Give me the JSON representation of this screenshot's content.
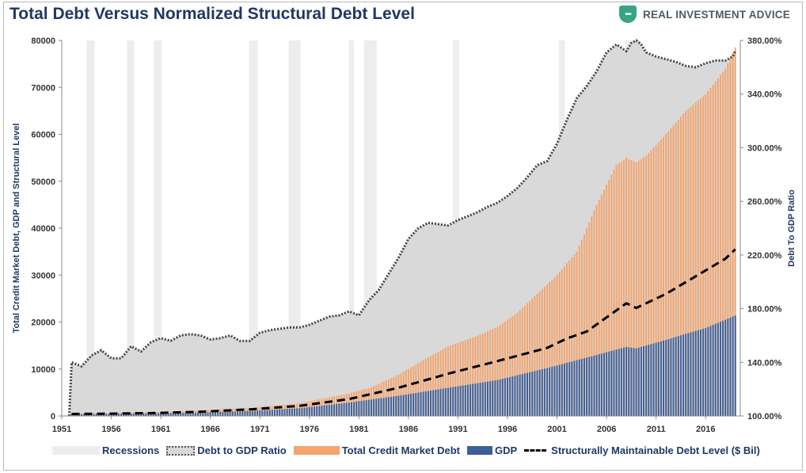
{
  "title": "Total Debt Versus Normalized Structural Debt Level",
  "brand": {
    "badge": "•••",
    "name": "REAL INVESTMENT ADVICE"
  },
  "colors": {
    "ratio_fill": "#d9d9d9",
    "recession": "#ededed",
    "debt": "#f4a46c",
    "gdp": "#3c5f99",
    "structural": "#000000",
    "title": "#1f3864"
  },
  "legend": [
    {
      "key": "recessions",
      "label": "Recessions"
    },
    {
      "key": "ratio",
      "label": "Debt to GDP Ratio"
    },
    {
      "key": "debt",
      "label": "Total Credit Market Debt"
    },
    {
      "key": "gdp",
      "label": "GDP"
    },
    {
      "key": "structural",
      "label": "Structurally Maintainable Debt Level ($ Bil)"
    }
  ],
  "chart_data": {
    "type": "area",
    "title": "Total Debt Versus Normalized Structural Debt Level",
    "xlabel": "",
    "ylabel": "Total Credit Market Debt, GDP and Structural Level",
    "y2label": "Debt To GDP Ratio",
    "xlim": [
      1951,
      2019.5
    ],
    "ylim": [
      0,
      80000
    ],
    "y2lim": [
      100,
      380
    ],
    "x_ticks": [
      "1951",
      "1956",
      "1961",
      "1966",
      "1971",
      "1976",
      "1981",
      "1986",
      "1991",
      "1996",
      "2001",
      "2006",
      "2011",
      "2016"
    ],
    "y_ticks": [
      "0",
      "10000",
      "20000",
      "30000",
      "40000",
      "50000",
      "60000",
      "70000",
      "80000"
    ],
    "y2_ticks": [
      "100.00%",
      "140.00%",
      "180.00%",
      "220.00%",
      "260.00%",
      "300.00%",
      "340.00%",
      "380.00%"
    ],
    "recessions": [
      [
        1953.5,
        1954.3
      ],
      [
        1957.6,
        1958.3
      ],
      [
        1960.3,
        1961.1
      ],
      [
        1969.9,
        1970.8
      ],
      [
        1973.9,
        1975.1
      ],
      [
        1980.0,
        1980.5
      ],
      [
        1981.5,
        1982.8
      ],
      [
        1990.5,
        1991.1
      ],
      [
        2001.2,
        2001.8
      ],
      [
        2007.9,
        2009.5
      ]
    ],
    "series": [
      {
        "name": "Debt to GDP Ratio",
        "axis": "right",
        "x": [
          1951.75,
          1952,
          1953,
          1954,
          1955,
          1956,
          1957,
          1958,
          1959,
          1960,
          1961,
          1962,
          1963,
          1964,
          1965,
          1966,
          1967,
          1968,
          1969,
          1970,
          1971,
          1972,
          1973,
          1974,
          1975,
          1976,
          1977,
          1978,
          1979,
          1980,
          1981,
          1982,
          1983,
          1984,
          1985,
          1986,
          1987,
          1988,
          1989,
          1990,
          1991,
          1992,
          1993,
          1994,
          1995,
          1996,
          1997,
          1998,
          1999,
          2000,
          2001,
          2002,
          2003,
          2004,
          2005,
          2006,
          2007,
          2008,
          2008.5,
          2009,
          2009.5,
          2010,
          2011,
          2012,
          2013,
          2014,
          2015,
          2016,
          2017,
          2018,
          2018.75,
          2019
        ],
        "values": [
          100,
          140,
          137,
          145,
          149,
          143,
          143,
          152,
          148,
          155,
          158,
          156,
          160,
          161,
          160,
          157,
          158,
          160,
          156,
          156,
          162,
          164,
          165,
          166,
          166,
          168,
          171,
          174,
          175,
          178,
          175,
          186,
          194,
          206,
          218,
          232,
          240,
          244,
          243,
          242,
          246,
          249,
          252,
          256,
          259,
          264,
          270,
          278,
          287,
          290,
          303,
          321,
          337,
          346,
          357,
          371,
          377,
          372,
          378,
          380,
          377,
          371,
          368,
          366,
          364,
          361,
          360,
          363,
          365,
          365,
          368,
          372
        ]
      },
      {
        "name": "Total Credit Market Debt",
        "axis": "left",
        "x": [
          1952,
          1955,
          1960,
          1965,
          1970,
          1975,
          1980,
          1982,
          1985,
          1988,
          1990,
          1993,
          1995,
          1997,
          1999,
          2001,
          2003,
          2005,
          2007,
          2008,
          2009,
          2010,
          2012,
          2014,
          2016,
          2018,
          2019
        ],
        "values": [
          500,
          560,
          800,
          1200,
          1700,
          2700,
          4800,
          5900,
          8800,
          12500,
          14800,
          17100,
          19000,
          22000,
          26000,
          30000,
          35000,
          45000,
          53500,
          55000,
          54000,
          55500,
          60000,
          65000,
          68500,
          74000,
          78500
        ]
      },
      {
        "name": "GDP",
        "axis": "left",
        "x": [
          1952,
          1955,
          1960,
          1965,
          1970,
          1975,
          1980,
          1985,
          1990,
          1995,
          2000,
          2005,
          2008,
          2009,
          2010,
          2012,
          2014,
          2016,
          2018,
          2019
        ],
        "values": [
          360,
          420,
          540,
          720,
          1050,
          1650,
          2850,
          4300,
          6000,
          7650,
          10200,
          13000,
          14700,
          14400,
          15000,
          16200,
          17500,
          18700,
          20500,
          21400
        ]
      },
      {
        "name": "Structurally Maintainable Debt Level ($ Bil)",
        "axis": "left",
        "x": [
          1952,
          1955,
          1960,
          1965,
          1970,
          1975,
          1980,
          1985,
          1990,
          1995,
          2000,
          2002,
          2004,
          2006,
          2008,
          2009,
          2010,
          2012,
          2014,
          2016,
          2018,
          2019
        ],
        "values": [
          420,
          480,
          600,
          900,
          1400,
          2150,
          3600,
          6000,
          9000,
          11700,
          14500,
          16500,
          18000,
          21000,
          24000,
          23000,
          24000,
          26000,
          28500,
          31000,
          33500,
          35500
        ]
      }
    ]
  }
}
